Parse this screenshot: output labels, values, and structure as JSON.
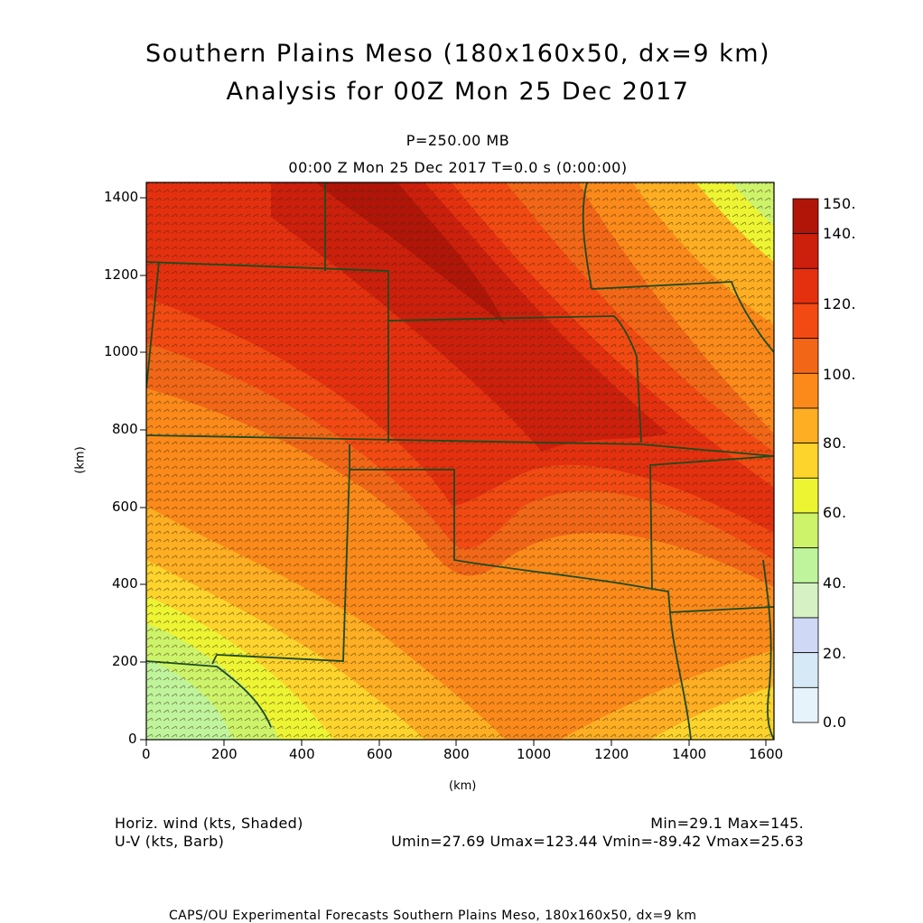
{
  "title_line1": "Southern Plains Meso (180x160x50, dx=9 km)",
  "title_line2": "Analysis for 00Z Mon 25 Dec 2017",
  "level": "P=250.00 MB",
  "time_line": "00:00 Z Mon 25 Dec 2017    T=0.0 s (0:00:00)",
  "x_axis": {
    "label": "(km)",
    "ticks": [
      "0",
      "200",
      "400",
      "600",
      "800",
      "1000",
      "1200",
      "1400",
      "1600"
    ],
    "range": [
      0,
      1620
    ]
  },
  "y_axis": {
    "label": "(km)",
    "ticks": [
      "0",
      "200",
      "400",
      "600",
      "800",
      "1000",
      "1200",
      "1400"
    ],
    "range": [
      0,
      1440
    ]
  },
  "colorbar": {
    "labels": [
      "150.",
      "140.",
      "120.",
      "100.",
      "80.",
      "60.",
      "40.",
      "20.",
      "0.0"
    ],
    "colors": [
      "#b01508",
      "#cc1f0c",
      "#e5300f",
      "#f24a12",
      "#f26717",
      "#fb8a1a",
      "#fdae22",
      "#fdd42c",
      "#edf533",
      "#cdf36a",
      "#bff49c",
      "#d6f2c4",
      "#cfd9f5",
      "#d6e9f6",
      "#e7f3fb"
    ]
  },
  "field_info": {
    "left_line1": "Horiz. wind (kts, Shaded)",
    "left_line2": "U-V (kts, Barb)",
    "right_line1": "Min=29.1 Max=145.",
    "right_line2": "Umin=27.69 Umax=123.44 Vmin=-89.42 Vmax=25.63"
  },
  "footer": "CAPS/OU Experimental Forecasts  Southern Plains Meso, 180x160x50, dx=9 km"
}
